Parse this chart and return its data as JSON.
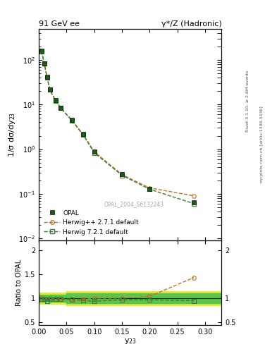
{
  "title_left": "91 GeV ee",
  "title_right": "γ*/Z (Hadronic)",
  "ylabel_main": "1/σ dσ/dy$_{23}$",
  "ylabel_ratio": "Ratio to OPAL",
  "xlabel": "y$_{23}$",
  "watermark": "OPAL_2004_S6132243",
  "right_label_top": "Rivet 3.1.10, ≥ 2.6M events",
  "right_label_bottom": "mcplots.cern.ch [arXiv:1306.3436]",
  "opal_x": [
    0.005,
    0.01,
    0.015,
    0.02,
    0.03,
    0.04,
    0.06,
    0.08,
    0.1,
    0.15,
    0.2,
    0.28
  ],
  "opal_y": [
    160.0,
    85.0,
    42.0,
    22.0,
    12.5,
    8.5,
    4.5,
    2.2,
    0.88,
    0.27,
    0.13,
    0.063
  ],
  "opal_yerr": [
    10.0,
    5.0,
    3.0,
    1.5,
    0.8,
    0.5,
    0.3,
    0.15,
    0.06,
    0.02,
    0.01,
    0.005
  ],
  "herwig1_x": [
    0.005,
    0.01,
    0.015,
    0.02,
    0.03,
    0.04,
    0.06,
    0.08,
    0.1,
    0.15,
    0.2,
    0.28
  ],
  "herwig1_y": [
    162.0,
    82.0,
    41.0,
    22.0,
    12.3,
    8.4,
    4.4,
    2.15,
    0.88,
    0.27,
    0.135,
    0.09
  ],
  "herwig2_x": [
    0.005,
    0.01,
    0.015,
    0.02,
    0.03,
    0.04,
    0.06,
    0.08,
    0.1,
    0.15,
    0.2,
    0.28
  ],
  "herwig2_y": [
    158.0,
    83.0,
    40.0,
    21.5,
    12.2,
    8.3,
    4.35,
    2.1,
    0.83,
    0.26,
    0.126,
    0.06
  ],
  "ratio_herwig1_y": [
    1.01,
    0.97,
    0.98,
    1.0,
    0.98,
    0.99,
    0.98,
    0.98,
    1.0,
    1.0,
    1.04,
    1.43
  ],
  "ratio_herwig2_y": [
    0.99,
    0.98,
    0.95,
    0.98,
    0.98,
    0.98,
    0.97,
    0.96,
    0.94,
    0.97,
    0.97,
    0.95
  ],
  "opal_color": "#1a5c1a",
  "herwig1_color": "#c87020",
  "herwig2_color": "#3a7a3a",
  "yellow_band_color": "#e8e800",
  "green_band_color": "#50c050",
  "xlim": [
    0.0,
    0.33
  ],
  "ylim_main": [
    0.009,
    500.0
  ],
  "ylim_ratio": [
    0.45,
    2.2
  ]
}
